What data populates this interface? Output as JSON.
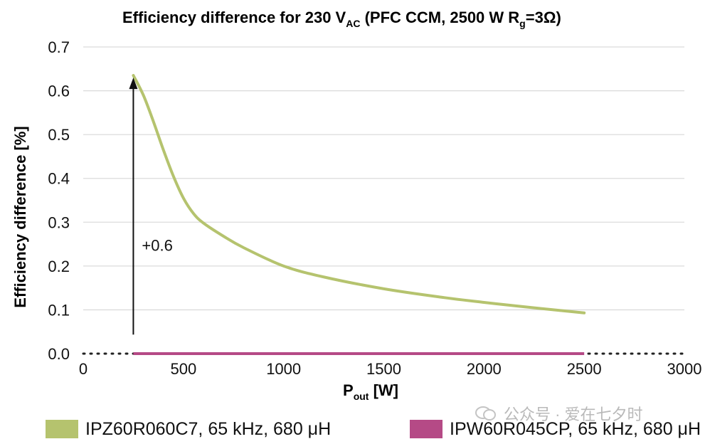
{
  "chart_data": {
    "type": "line",
    "title": {
      "main": "Efficiency difference for 230 V",
      "sub": "AC",
      "rest": "  (PFC CCM, 2500 W R",
      "sub2": "g",
      "end": "=3Ω)"
    },
    "xlabel": {
      "main": "P",
      "sub": "out",
      "rest": " [W]"
    },
    "ylabel": "Efficiency difference [%]",
    "xlim": [
      0,
      3000
    ],
    "ylim": [
      0,
      0.7
    ],
    "xticks": [
      "0",
      "500",
      "1000",
      "1500",
      "2000",
      "2500",
      "3000"
    ],
    "yticks": [
      "0.0",
      "0.1",
      "0.2",
      "0.3",
      "0.4",
      "0.5",
      "0.6",
      "0.7"
    ],
    "grid": true,
    "legend_position": "bottom",
    "series": [
      {
        "name": "IPZ60R060C7, 65 kHz, 680 μH",
        "color": "#b5c36e",
        "x": [
          250,
          300,
          350,
          400,
          450,
          500,
          550,
          600,
          700,
          800,
          1000,
          1200,
          1500,
          1800,
          2000,
          2200,
          2500
        ],
        "y": [
          0.635,
          0.59,
          0.53,
          0.465,
          0.405,
          0.355,
          0.32,
          0.298,
          0.268,
          0.242,
          0.2,
          0.175,
          0.148,
          0.128,
          0.117,
          0.107,
          0.093
        ]
      },
      {
        "name": "IPW60R045CP, 65 kHz, 680 μH",
        "color": "#b54a86",
        "x": [
          250,
          2500
        ],
        "y": [
          0,
          0
        ]
      }
    ],
    "annotation": {
      "text": "+0.6",
      "arrow_x": 250,
      "arrow_from": 0.05,
      "arrow_to": 0.63
    }
  },
  "watermark": "公众号 · 爱在七夕时"
}
